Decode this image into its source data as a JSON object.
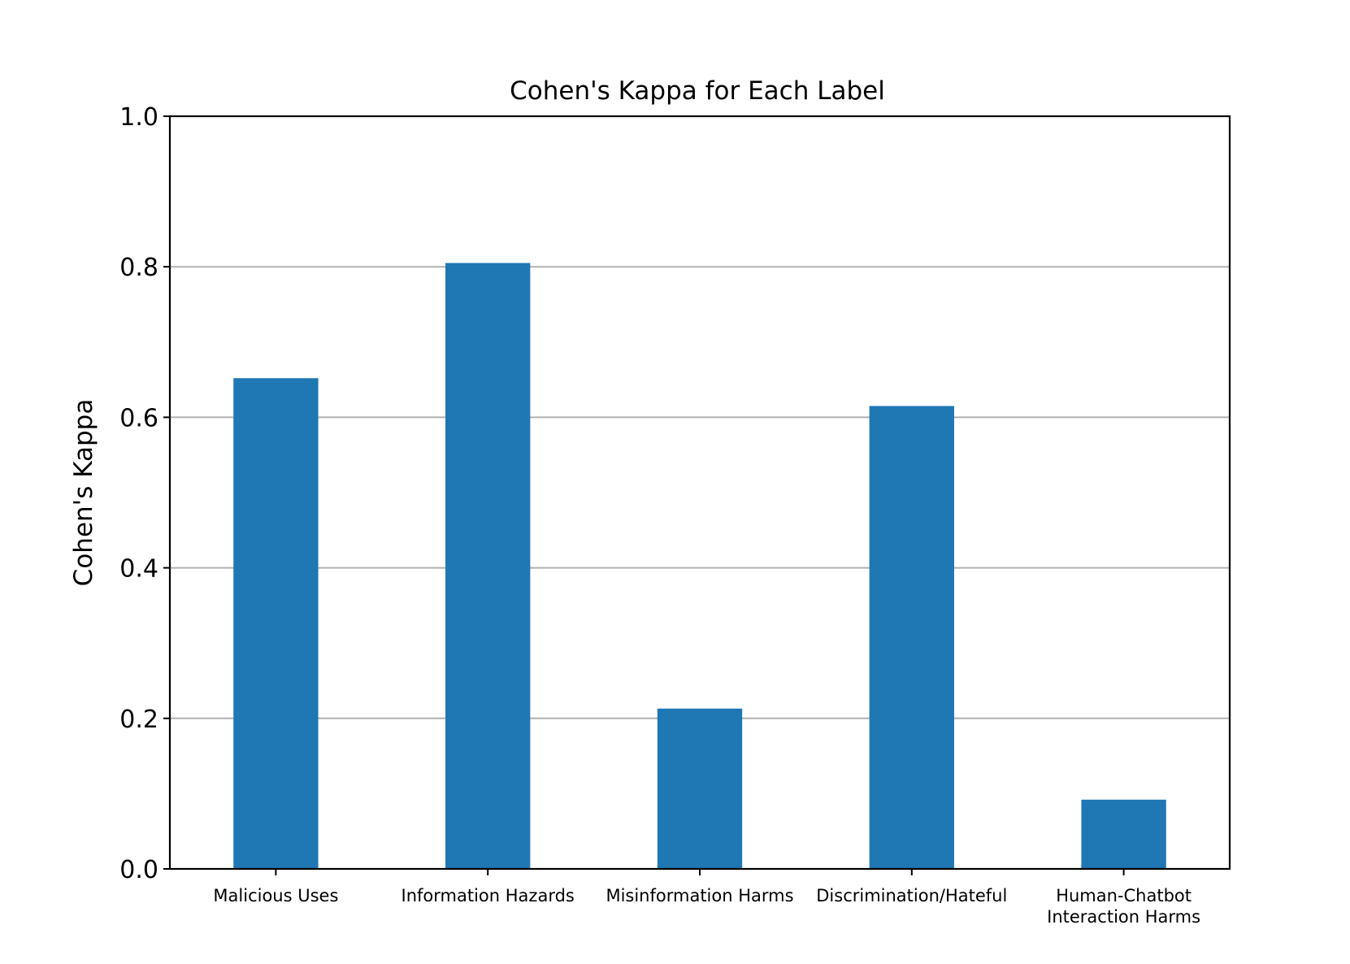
{
  "chart_data": {
    "type": "bar",
    "title": "Cohen's Kappa for Each Label",
    "xlabel": "",
    "ylabel": "Cohen's Kappa",
    "ylim": [
      0,
      1.0
    ],
    "yticks": [
      "0.0",
      "0.2",
      "0.4",
      "0.6",
      "0.8",
      "1.0"
    ],
    "grid": "y-axis",
    "categories": [
      [
        "Malicious Uses"
      ],
      [
        "Information Hazards"
      ],
      [
        "Misinformation Harms"
      ],
      [
        "Discrimination/Hateful"
      ],
      [
        "Human-Chatbot",
        "Interaction Harms"
      ]
    ],
    "values": [
      0.652,
      0.805,
      0.213,
      0.615,
      0.092
    ],
    "bar_color": "#1f77b4"
  }
}
